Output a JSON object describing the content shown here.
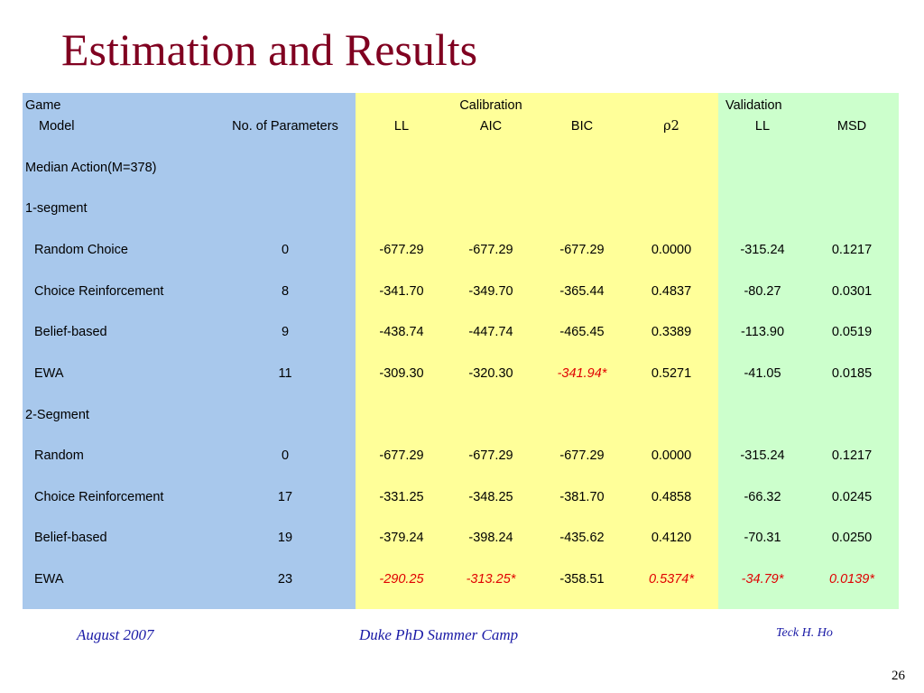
{
  "slide": {
    "title": "Estimation and Results",
    "page_number": "26"
  },
  "table": {
    "group_headers": {
      "game": "Game",
      "calibration": "Calibration",
      "validation": "Validation"
    },
    "column_headers": [
      "Model",
      "No. of Parameters",
      "LL",
      "AIC",
      "BIC",
      "ρ2",
      "LL",
      "MSD"
    ],
    "rows": [
      {
        "kind": "section",
        "label": "Median Action(M=378)"
      },
      {
        "kind": "section",
        "label": "1-segment"
      },
      {
        "kind": "data",
        "label": "Random Choice",
        "cells": [
          {
            "v": "0"
          },
          {
            "v": "-677.29"
          },
          {
            "v": "-677.29"
          },
          {
            "v": "-677.29"
          },
          {
            "v": "0.0000"
          },
          {
            "v": "-315.24"
          },
          {
            "v": "0.1217"
          }
        ]
      },
      {
        "kind": "data",
        "label": "Choice Reinforcement",
        "cells": [
          {
            "v": "8"
          },
          {
            "v": "-341.70"
          },
          {
            "v": "-349.70"
          },
          {
            "v": "-365.44"
          },
          {
            "v": "0.4837"
          },
          {
            "v": "-80.27"
          },
          {
            "v": "0.0301"
          }
        ]
      },
      {
        "kind": "data",
        "label": "Belief-based",
        "cells": [
          {
            "v": "9"
          },
          {
            "v": "-438.74"
          },
          {
            "v": "-447.74"
          },
          {
            "v": "-465.45"
          },
          {
            "v": "0.3389"
          },
          {
            "v": "-113.90"
          },
          {
            "v": "0.0519"
          }
        ]
      },
      {
        "kind": "data",
        "label": "EWA",
        "cells": [
          {
            "v": "11"
          },
          {
            "v": "-309.30"
          },
          {
            "v": "-320.30"
          },
          {
            "v": "-341.94*",
            "hl": true
          },
          {
            "v": "0.5271"
          },
          {
            "v": "-41.05"
          },
          {
            "v": "0.0185"
          }
        ]
      },
      {
        "kind": "section",
        "label": "2-Segment"
      },
      {
        "kind": "data",
        "label": "Random",
        "cells": [
          {
            "v": "0"
          },
          {
            "v": "-677.29"
          },
          {
            "v": "-677.29"
          },
          {
            "v": "-677.29"
          },
          {
            "v": "0.0000"
          },
          {
            "v": "-315.24"
          },
          {
            "v": "0.1217"
          }
        ]
      },
      {
        "kind": "data",
        "label": "Choice Reinforcement",
        "cells": [
          {
            "v": "17"
          },
          {
            "v": "-331.25"
          },
          {
            "v": "-348.25"
          },
          {
            "v": "-381.70"
          },
          {
            "v": "0.4858"
          },
          {
            "v": "-66.32"
          },
          {
            "v": "0.0245"
          }
        ]
      },
      {
        "kind": "data",
        "label": "Belief-based",
        "cells": [
          {
            "v": "19"
          },
          {
            "v": "-379.24"
          },
          {
            "v": "-398.24"
          },
          {
            "v": "-435.62"
          },
          {
            "v": "0.4120"
          },
          {
            "v": "-70.31"
          },
          {
            "v": "0.0250"
          }
        ]
      },
      {
        "kind": "data",
        "label": "EWA",
        "cells": [
          {
            "v": "23"
          },
          {
            "v": "-290.25",
            "hl": true
          },
          {
            "v": "-313.25*",
            "hl": true
          },
          {
            "v": "-358.51"
          },
          {
            "v": "0.5374*",
            "hl": true
          },
          {
            "v": "-34.79*",
            "hl": true
          },
          {
            "v": "0.0139*",
            "hl": true
          }
        ]
      }
    ]
  },
  "footer": {
    "date": "August 2007",
    "event": "Duke PhD Summer Camp",
    "author": "Teck H. Ho"
  },
  "colors": {
    "title": "#800020",
    "model_band": "#a8c8ec",
    "calibration_band": "#ffff99",
    "validation_band": "#ccffcc",
    "highlight": "#e00000",
    "footer_text": "#1a1aa6"
  }
}
